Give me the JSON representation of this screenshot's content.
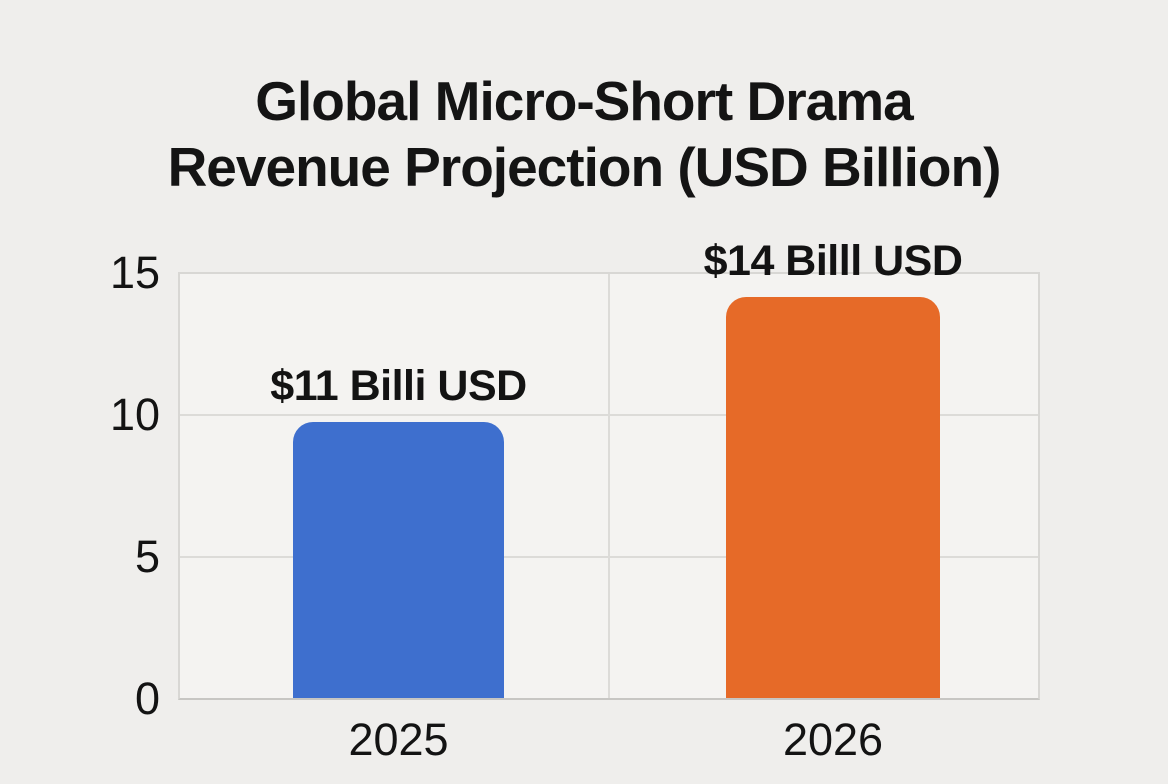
{
  "chart_data": {
    "type": "bar",
    "title": "Global Micro-Short Drama Revenue Projection (USD Billion)",
    "title_lines": [
      "Global Micro-Short Drama",
      "Revenue Projection (USD Billion)"
    ],
    "categories": [
      "2025",
      "2026"
    ],
    "values": [
      11,
      14
    ],
    "bar_value_labels": [
      "$11 Billi USD",
      "$14 Billl USD"
    ],
    "drawn_bar_heights": [
      9.78,
      14.2
    ],
    "series_colors": [
      "#3e6fce",
      "#e66a28"
    ],
    "ylim": [
      0,
      15
    ],
    "yticks": [
      "15",
      "10",
      "5",
      "0"
    ],
    "grid": true,
    "legend": "none",
    "xlabel": "",
    "ylabel": "",
    "background_color": "#efeeec",
    "gridline_color": "#dcdbd8",
    "text_color": "#141414"
  }
}
